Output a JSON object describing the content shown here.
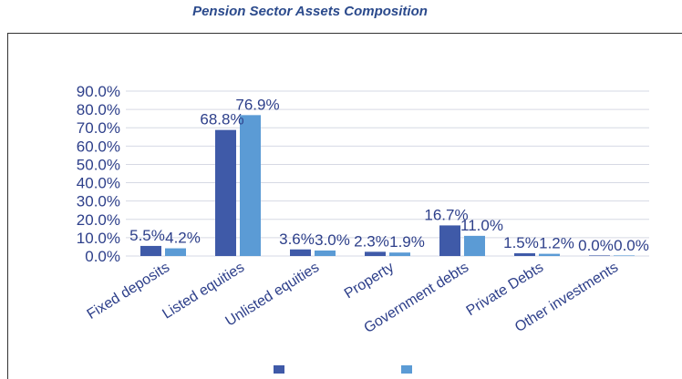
{
  "chart_data": {
    "type": "bar",
    "title": "Pension Sector Assets Composition",
    "categories": [
      "Fixed deposits",
      "Listed equities",
      "Unlisted equities",
      "Property",
      "Government debts",
      "Private Debts",
      "Other investments"
    ],
    "series": [
      {
        "name": "",
        "values": [
          5.5,
          68.8,
          3.6,
          2.3,
          16.7,
          1.5,
          0.0
        ],
        "labels": [
          "5.5%",
          "68.8%",
          "3.6%",
          "2.3%",
          "16.7%",
          "1.5%",
          "0.0%"
        ]
      },
      {
        "name": "",
        "values": [
          4.2,
          76.9,
          3.0,
          1.9,
          11.0,
          1.2,
          0.0
        ],
        "labels": [
          "4.2%",
          "76.9%",
          "3.0%",
          "1.9%",
          "11.0%",
          "1.2%",
          "0.0%"
        ]
      }
    ],
    "yticks": [
      "0.0%",
      "10.0%",
      "20.0%",
      "30.0%",
      "40.0%",
      "50.0%",
      "60.0%",
      "70.0%",
      "80.0%",
      "90.0%"
    ],
    "ylim": [
      0,
      90
    ],
    "grid": true,
    "legend_position": "bottom",
    "colors": [
      "#3f5aa8",
      "#5b9bd5"
    ]
  }
}
